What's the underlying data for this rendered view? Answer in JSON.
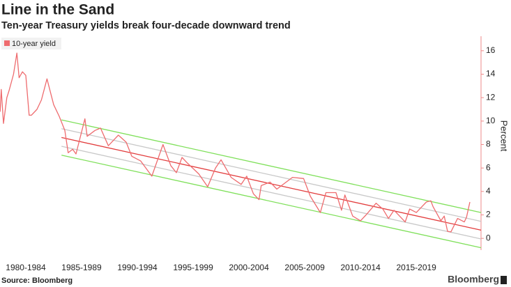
{
  "chart_data": {
    "type": "line",
    "title": "Line in the Sand",
    "subtitle": "Ten-year Treasury yields break four-decade downward trend",
    "y_label": "Percent",
    "source": "Source: Bloomberg",
    "brand": "Bloomberg",
    "legend": "top-left",
    "xlim": [
      1980.19,
      2023.3
    ],
    "xticks": [
      {
        "value": 1982.5,
        "label": "1980-1984"
      },
      {
        "value": 1987.5,
        "label": "1985-1989"
      },
      {
        "value": 1992.5,
        "label": "1990-1994"
      },
      {
        "value": 1997.5,
        "label": "1995-1999"
      },
      {
        "value": 2002.5,
        "label": "2000-2004"
      },
      {
        "value": 2007.5,
        "label": "2005-2009"
      },
      {
        "value": 2012.5,
        "label": "2010-2014"
      },
      {
        "value": 2017.5,
        "label": "2015-2019"
      }
    ],
    "ylim": [
      -1,
      17
    ],
    "yticks": [
      0,
      2,
      4,
      6,
      8,
      10,
      12,
      14,
      16
    ],
    "series": [
      {
        "name": "10-year yield",
        "color": "#ee6b6e",
        "x": [
          1980.2,
          1980.3,
          1980.5,
          1980.8,
          1981.0,
          1981.4,
          1981.7,
          1981.9,
          1982.2,
          1982.5,
          1982.8,
          1983.0,
          1983.5,
          1983.9,
          1984.4,
          1984.7,
          1985.0,
          1985.5,
          1986.0,
          1986.3,
          1986.7,
          1987.0,
          1987.8,
          1988.0,
          1988.7,
          1989.2,
          1989.9,
          1990.5,
          1990.8,
          1991.5,
          1992.0,
          1992.8,
          1993.8,
          1994.8,
          1995.5,
          1996.0,
          1996.5,
          1997.0,
          1998.0,
          1998.8,
          1999.5,
          2000.0,
          2000.9,
          2001.8,
          2002.3,
          2002.9,
          2003.4,
          2003.6,
          2004.4,
          2005.0,
          2006.4,
          2007.4,
          2008.0,
          2008.9,
          2009.4,
          2010.3,
          2010.8,
          2011.1,
          2011.8,
          2012.5,
          2013.0,
          2013.9,
          2014.5,
          2015.0,
          2015.5,
          2016.5,
          2016.9,
          2017.5,
          2018.0,
          2018.4,
          2018.8,
          2019.0,
          2019.7,
          2020.0,
          2020.3,
          2020.6,
          2021.2,
          2021.8,
          2022.0,
          2022.3
        ],
        "values": [
          10.8,
          12.7,
          9.8,
          12.0,
          12.6,
          14.0,
          15.8,
          13.7,
          14.2,
          13.9,
          10.5,
          10.5,
          11.0,
          11.8,
          13.6,
          12.5,
          11.4,
          10.4,
          9.2,
          7.3,
          7.6,
          7.2,
          10.2,
          8.7,
          9.2,
          9.4,
          7.9,
          8.5,
          8.8,
          8.2,
          7.0,
          6.6,
          5.3,
          8.0,
          6.2,
          5.6,
          6.9,
          6.4,
          5.5,
          4.4,
          6.0,
          6.7,
          5.2,
          4.6,
          5.3,
          3.8,
          3.3,
          4.5,
          4.8,
          4.2,
          5.2,
          5.1,
          3.6,
          2.2,
          3.9,
          3.9,
          2.4,
          3.7,
          1.9,
          1.5,
          2.0,
          3.0,
          2.5,
          1.7,
          2.4,
          1.4,
          2.5,
          2.2,
          2.7,
          3.1,
          3.2,
          2.7,
          1.5,
          1.9,
          0.6,
          0.55,
          1.7,
          1.4,
          1.8,
          3.1
        ]
      }
    ],
    "channel_lines": [
      {
        "color": "#7fe05a",
        "x": [
          1985.7,
          2023.3
        ],
        "values": [
          10.1,
          2.2
        ]
      },
      {
        "color": "#c8c8c8",
        "x": [
          1985.7,
          2023.3
        ],
        "values": [
          9.35,
          1.45
        ]
      },
      {
        "color": "#e23c3c",
        "x": [
          1985.7,
          2023.3
        ],
        "values": [
          8.6,
          0.7
        ]
      },
      {
        "color": "#c8c8c8",
        "x": [
          1985.7,
          2023.3
        ],
        "values": [
          7.85,
          -0.05
        ]
      },
      {
        "color": "#7fe05a",
        "x": [
          1985.7,
          2023.3
        ],
        "values": [
          7.1,
          -0.8
        ]
      }
    ]
  }
}
